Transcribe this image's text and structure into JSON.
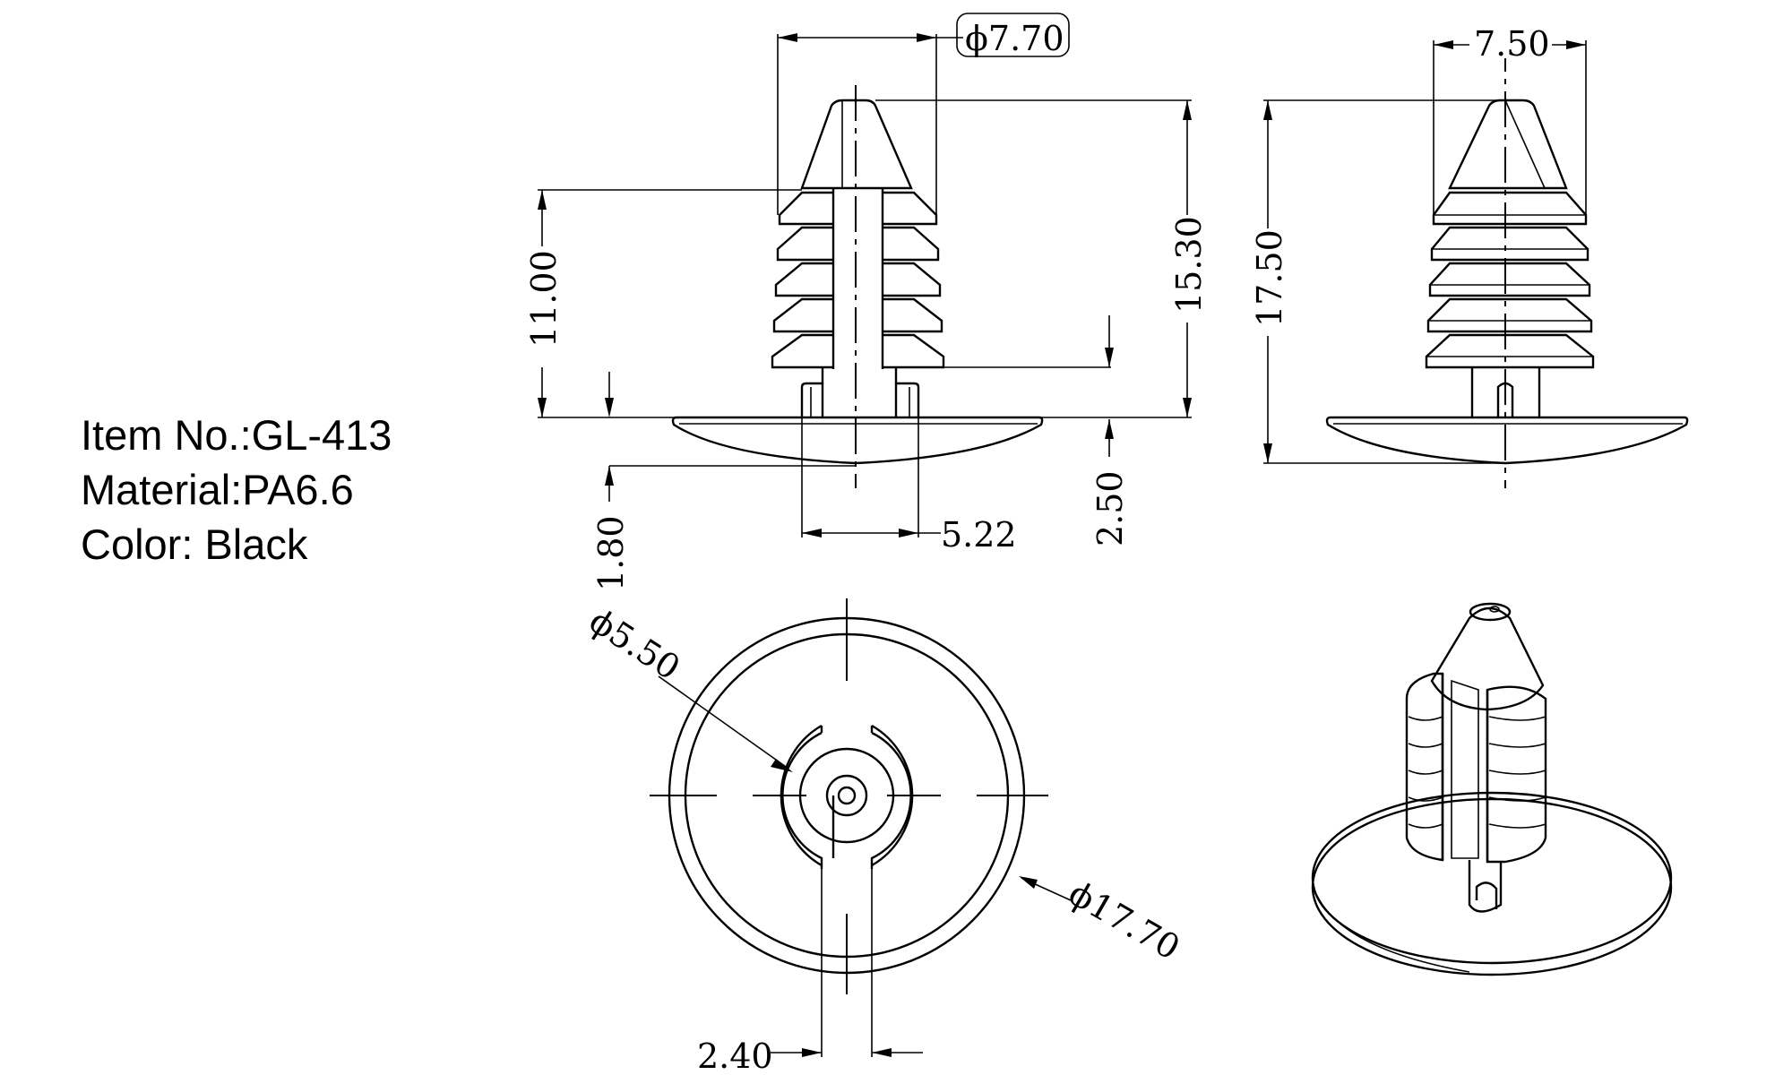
{
  "spec": {
    "item": "Item No.:GL-413",
    "material": "Material:PA6.6",
    "color": "Color: Black"
  },
  "dims": {
    "d_top": "ϕ7.70",
    "width_side": "7.50",
    "h_11": "11.00",
    "h_1530": "15.30",
    "h_1750": "17.50",
    "h_180": "1.80",
    "h_250": "2.50",
    "w_522": "5.22",
    "d_550": "ϕ5.50",
    "d_1770": "ϕ17.70",
    "w_240": "2.40"
  }
}
